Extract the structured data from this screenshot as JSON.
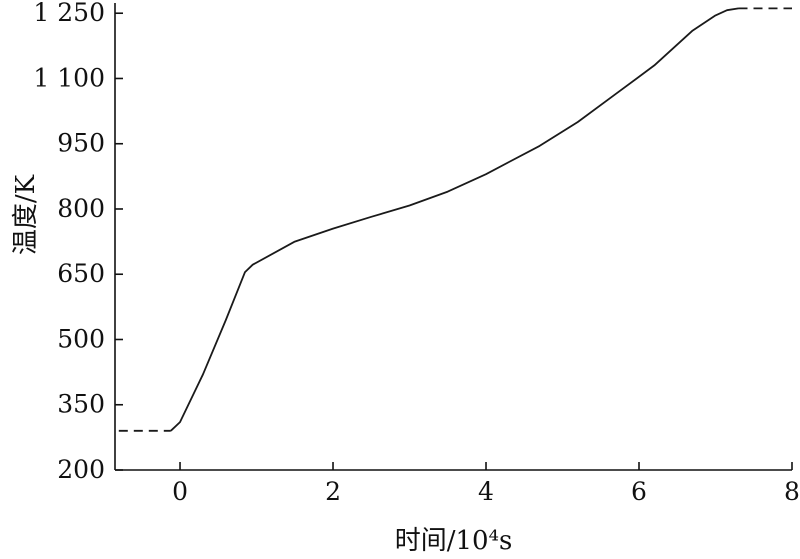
{
  "chart_data": {
    "type": "line",
    "title": "",
    "xlabel": "时间/10⁴s",
    "ylabel": "温度/K",
    "xlim": [
      -0.85,
      8
    ],
    "ylim": [
      200,
      1262
    ],
    "xticks": [
      0,
      2,
      4,
      6,
      8
    ],
    "xtick_labels": [
      "0",
      "2",
      "4",
      "6",
      "8"
    ],
    "yticks": [
      200,
      350,
      500,
      650,
      800,
      950,
      1100,
      1250
    ],
    "ytick_labels": [
      "200",
      "350",
      "500",
      "650",
      "800",
      "950",
      "1 100",
      "1 250"
    ],
    "grid": false,
    "legend": "none",
    "line_color": "#1a1a1a",
    "axis_color": "#111111",
    "series": [
      {
        "name": "initial-temperature-dashed",
        "style": "dashed",
        "points": [
          [
            -0.8,
            290
          ],
          [
            -0.12,
            290
          ]
        ]
      },
      {
        "name": "heating-curve",
        "style": "solid",
        "points": [
          [
            -0.12,
            290
          ],
          [
            0.0,
            310
          ],
          [
            0.3,
            420
          ],
          [
            0.6,
            545
          ],
          [
            0.85,
            655
          ],
          [
            0.95,
            672
          ],
          [
            1.5,
            725
          ],
          [
            2.0,
            755
          ],
          [
            2.5,
            782
          ],
          [
            3.0,
            808
          ],
          [
            3.5,
            840
          ],
          [
            4.0,
            880
          ],
          [
            4.3,
            908
          ],
          [
            4.7,
            945
          ],
          [
            5.2,
            1000
          ],
          [
            5.7,
            1065
          ],
          [
            6.2,
            1130
          ],
          [
            6.7,
            1210
          ],
          [
            7.0,
            1245
          ],
          [
            7.15,
            1257
          ],
          [
            7.3,
            1261
          ]
        ]
      },
      {
        "name": "final-temperature-dashed",
        "style": "dashed",
        "points": [
          [
            7.3,
            1261
          ],
          [
            8.0,
            1261
          ]
        ]
      }
    ]
  }
}
